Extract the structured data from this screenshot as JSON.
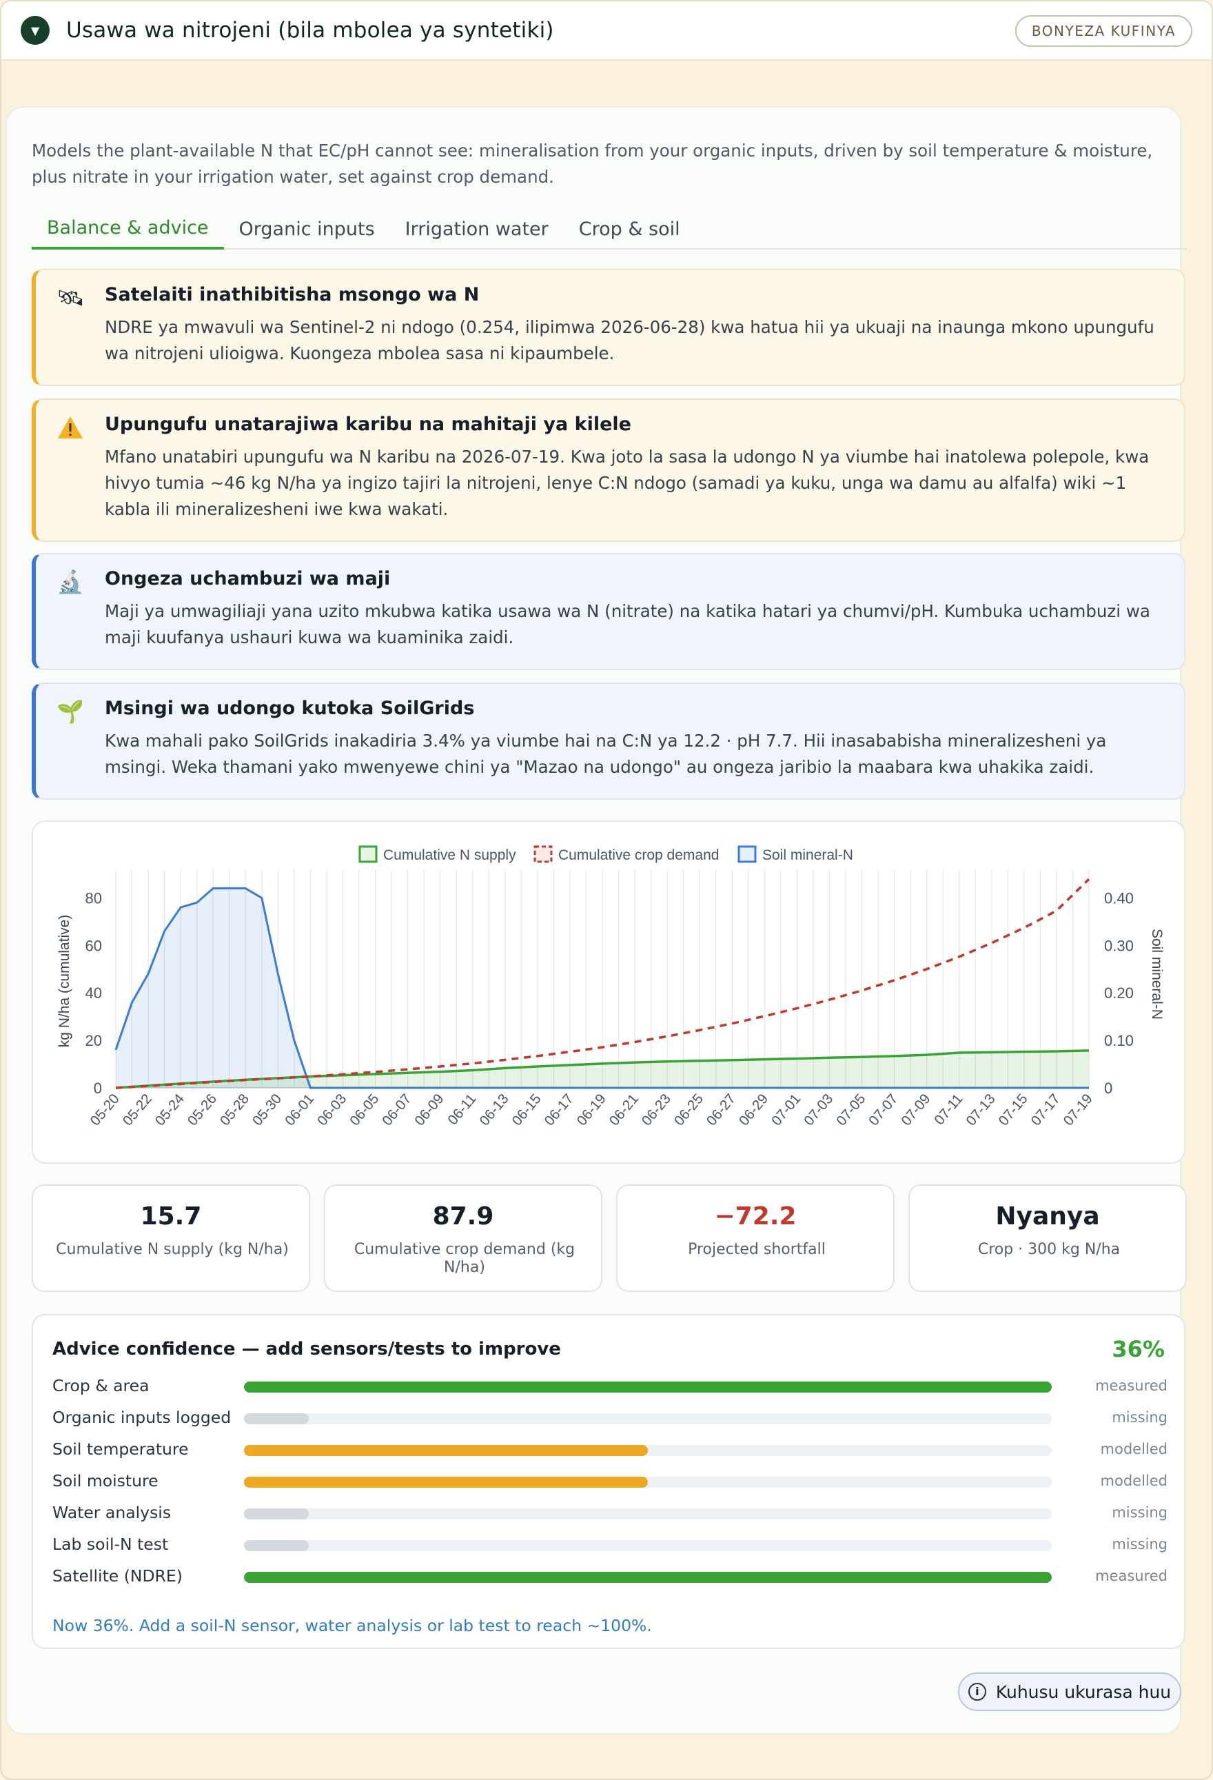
{
  "header": {
    "title": "Usawa wa nitrojeni (bila mbolea ya syntetiki)",
    "collapse_label": "BONYEZA KUFINYA"
  },
  "intro": "Models the plant-available N that EC/pH cannot see: mineralisation from your organic inputs, driven by soil temperature & moisture, plus nitrate in your irrigation water, set against crop demand.",
  "tabs": [
    {
      "label": "Balance & advice",
      "active": true
    },
    {
      "label": "Organic inputs",
      "active": false
    },
    {
      "label": "Irrigation water",
      "active": false
    },
    {
      "label": "Crop & soil",
      "active": false
    }
  ],
  "alerts": [
    {
      "kind": "warn",
      "icon": "satellite-icon",
      "glyph": "🛰",
      "title": "Satelaiti inathibitisha msongo wa N",
      "body": "NDRE ya mwavuli wa Sentinel-2 ni ndogo (0.254, ilipimwa 2026-06-28) kwa hatua hii ya ukuaji na inaunga mkono upungufu wa nitrojeni ulioigwa. Kuongeza mbolea sasa ni kipaumbele."
    },
    {
      "kind": "warn",
      "icon": "warning-icon",
      "glyph": "⚠",
      "title": "Upungufu unatarajiwa karibu na mahitaji ya kilele",
      "body": "Mfano unatabiri upungufu wa N karibu na 2026-07-19. Kwa joto la sasa la udongo N ya viumbe hai inatolewa polepole, kwa hivyo tumia ~46 kg N/ha ya ingizo tajiri la nitrojeni, lenye C:N ndogo (samadi ya kuku, unga wa damu au alfalfa) wiki ~1 kabla ili mineralizesheni iwe kwa wakati."
    },
    {
      "kind": "info",
      "icon": "microscope-icon",
      "glyph": "🔬",
      "title": "Ongeza uchambuzi wa maji",
      "body": "Maji ya umwagiliaji yana uzito mkubwa katika usawa wa N (nitrate) na katika hatari ya chumvi/pH. Kumbuka uchambuzi wa maji kuufanya ushauri kuwa wa kuaminika zaidi."
    },
    {
      "kind": "info",
      "icon": "seedling-icon",
      "glyph": "🌱",
      "title": "Msingi wa udongo kutoka SoilGrids",
      "body": "Kwa mahali pako SoilGrids inakadiria 3.4% ya viumbe hai na C:N ya 12.2 · pH 7.7. Hii inasababisha mineralizesheni ya msingi. Weka thamani yako mwenyewe chini ya \"Mazao na udongo\" au ongeza jaribio la maabara kwa uhakika zaidi."
    }
  ],
  "chart_data": {
    "type": "line",
    "legend": [
      "Cumulative N supply",
      "Cumulative crop demand",
      "Soil mineral-N"
    ],
    "legend_position": "top-center",
    "ylabel_left": "kg N/ha (cumulative)",
    "ylabel_right": "Soil mineral-N",
    "yticks_left": [
      "0",
      "20",
      "40",
      "60",
      "80"
    ],
    "yticks_right": [
      "0",
      "0.10",
      "0.20",
      "0.30",
      "0.40"
    ],
    "ylim_left": [
      0,
      90
    ],
    "ylim_right": [
      0,
      0.45
    ],
    "grid": true,
    "x_tick_labels": [
      "05-20",
      "05-22",
      "05-24",
      "05-26",
      "05-28",
      "05-30",
      "06-01",
      "06-03",
      "06-05",
      "06-07",
      "06-09",
      "06-11",
      "06-13",
      "06-15",
      "06-17",
      "06-19",
      "06-21",
      "06-23",
      "06-25",
      "06-27",
      "06-29",
      "07-01",
      "07-03",
      "07-05",
      "07-07",
      "07-09",
      "07-11",
      "07-13",
      "07-15",
      "07-17",
      "07-19"
    ],
    "series": [
      {
        "name": "Cumulative N supply",
        "axis": "left",
        "color": "#3aa336",
        "style": "solid",
        "x": [
          0,
          2,
          4,
          6,
          8,
          10,
          12,
          14,
          16,
          18,
          20,
          22,
          24,
          26,
          28,
          30,
          32,
          34,
          36,
          38,
          40,
          42,
          44,
          46,
          48,
          50,
          52,
          54,
          56,
          58,
          60
        ],
        "values": [
          0,
          0.9,
          1.8,
          2.6,
          3.4,
          4.1,
          4.8,
          5.3,
          5.8,
          6.3,
          6.8,
          7.4,
          8.3,
          9.0,
          9.6,
          10.2,
          10.7,
          11.1,
          11.4,
          11.7,
          12.0,
          12.3,
          12.7,
          13.0,
          13.4,
          13.9,
          14.8,
          15.0,
          15.2,
          15.4,
          15.7
        ]
      },
      {
        "name": "Cumulative crop demand",
        "axis": "left",
        "color": "#c0392b",
        "style": "dashed",
        "x": [
          0,
          2,
          4,
          6,
          8,
          10,
          12,
          14,
          16,
          18,
          20,
          22,
          24,
          26,
          28,
          30,
          32,
          34,
          36,
          38,
          40,
          42,
          44,
          46,
          48,
          50,
          52,
          54,
          56,
          58,
          60
        ],
        "values": [
          0,
          0.8,
          1.6,
          2.5,
          3.3,
          4.0,
          4.8,
          5.7,
          6.7,
          7.8,
          9.0,
          10.3,
          11.8,
          13.4,
          15.2,
          17.1,
          19.3,
          21.7,
          24.3,
          27.1,
          30.2,
          33.5,
          37.1,
          41.0,
          45.3,
          50.0,
          55.2,
          61.0,
          67.4,
          74.6,
          87.9
        ]
      },
      {
        "name": "Soil mineral-N",
        "axis": "right",
        "color": "#3a7bd5",
        "style": "solid",
        "x": [
          0,
          1,
          2,
          3,
          4,
          5,
          6,
          7,
          8,
          9,
          10,
          11,
          12,
          13,
          14,
          60
        ],
        "values": [
          0.08,
          0.18,
          0.24,
          0.33,
          0.38,
          0.39,
          0.42,
          0.42,
          0.42,
          0.4,
          0.24,
          0.1,
          0,
          0,
          0,
          0
        ]
      }
    ]
  },
  "stats": [
    {
      "value": "15.7",
      "label": "Cumulative N supply (kg N/ha)",
      "color": "#17202a"
    },
    {
      "value": "87.9",
      "label": "Cumulative crop demand (kg N/ha)",
      "color": "#17202a"
    },
    {
      "value": "−72.2",
      "label": "Projected shortfall",
      "color": "#c0392b"
    },
    {
      "value": "Nyanya",
      "label": "Crop · 300 kg N/ha",
      "color": "#17202a"
    }
  ],
  "confidence": {
    "title": "Advice confidence — add sensors/tests to improve",
    "percent": "36%",
    "rows": [
      {
        "label": "Crop & area",
        "fill": 1.0,
        "status": "measured",
        "color": "#3aa336"
      },
      {
        "label": "Organic inputs logged",
        "fill": 0.08,
        "status": "missing",
        "color": "#d4d9e0"
      },
      {
        "label": "Soil temperature",
        "fill": 0.5,
        "status": "modelled",
        "color": "#efa823"
      },
      {
        "label": "Soil moisture",
        "fill": 0.5,
        "status": "modelled",
        "color": "#efa823"
      },
      {
        "label": "Water analysis",
        "fill": 0.08,
        "status": "missing",
        "color": "#d4d9e0"
      },
      {
        "label": "Lab soil-N test",
        "fill": 0.08,
        "status": "missing",
        "color": "#d4d9e0"
      },
      {
        "label": "Satellite (NDRE)",
        "fill": 1.0,
        "status": "measured",
        "color": "#3aa336"
      }
    ],
    "footnote": "Now 36%. Add a soil-N sensor, water analysis or lab test to reach ~100%."
  },
  "about_label": "Kuhusu ukurasa huu"
}
